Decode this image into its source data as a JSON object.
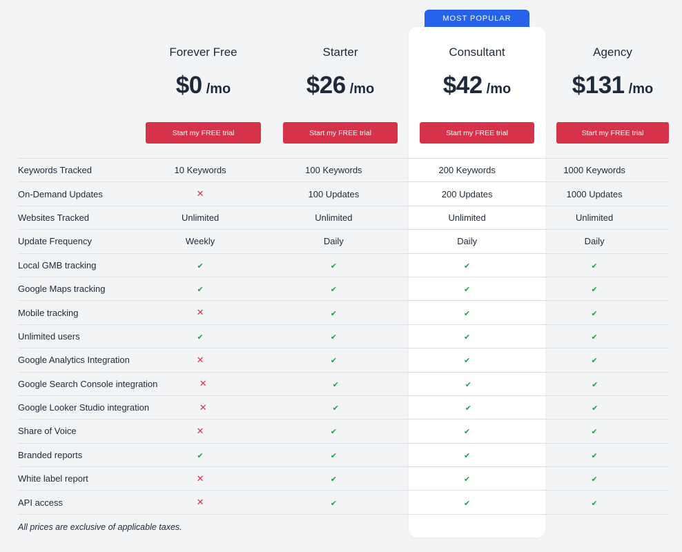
{
  "badge": "MOST POPULAR",
  "plans": [
    {
      "name": "Forever Free",
      "amount": "$0",
      "per": "/mo",
      "cta": "Start my FREE trial"
    },
    {
      "name": "Starter",
      "amount": "$26",
      "per": "/mo",
      "cta": "Start my FREE trial"
    },
    {
      "name": "Consultant",
      "amount": "$42",
      "per": "/mo",
      "cta": "Start my FREE trial"
    },
    {
      "name": "Agency",
      "amount": "$131",
      "per": "/mo",
      "cta": "Start my FREE trial"
    }
  ],
  "icons": {
    "yes": "check-icon",
    "no": "cross-icon"
  },
  "colors": {
    "accent": "#d6324a",
    "badge": "#2563eb",
    "check": "#16a34a"
  },
  "features": [
    {
      "label": "Keywords Tracked",
      "values": [
        "10 Keywords",
        "100 Keywords",
        "200 Keywords",
        "1000 Keywords"
      ]
    },
    {
      "label": "On-Demand Updates",
      "values": [
        "no",
        "100 Updates",
        "200 Updates",
        "1000 Updates"
      ]
    },
    {
      "label": "Websites Tracked",
      "values": [
        "Unlimited",
        "Unlimited",
        "Unlimited",
        "Unlimited"
      ]
    },
    {
      "label": "Update Frequency",
      "values": [
        "Weekly",
        "Daily",
        "Daily",
        "Daily"
      ]
    },
    {
      "label": "Local GMB tracking",
      "values": [
        "yes",
        "yes",
        "yes",
        "yes"
      ]
    },
    {
      "label": "Google Maps tracking",
      "values": [
        "yes",
        "yes",
        "yes",
        "yes"
      ]
    },
    {
      "label": "Mobile tracking",
      "values": [
        "no",
        "yes",
        "yes",
        "yes"
      ]
    },
    {
      "label": "Unlimited users",
      "values": [
        "yes",
        "yes",
        "yes",
        "yes"
      ]
    },
    {
      "label": "Google Analytics Integration",
      "values": [
        "no",
        "yes",
        "yes",
        "yes"
      ]
    },
    {
      "label": "Google Search Console integration",
      "values": [
        "no",
        "yes",
        "yes",
        "yes"
      ]
    },
    {
      "label": "Google Looker Studio integration",
      "values": [
        "no",
        "yes",
        "yes",
        "yes"
      ]
    },
    {
      "label": "Share of Voice",
      "values": [
        "no",
        "yes",
        "yes",
        "yes"
      ]
    },
    {
      "label": "Branded reports",
      "values": [
        "yes",
        "yes",
        "yes",
        "yes"
      ]
    },
    {
      "label": "White label report",
      "values": [
        "no",
        "yes",
        "yes",
        "yes"
      ]
    },
    {
      "label": "API access",
      "values": [
        "no",
        "yes",
        "yes",
        "yes"
      ]
    }
  ],
  "note": "All prices are exclusive of applicable taxes."
}
